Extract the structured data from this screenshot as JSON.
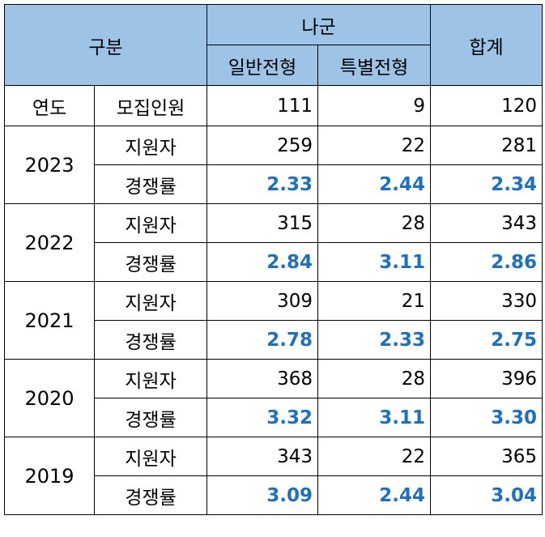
{
  "header": {
    "category": "구분",
    "group": "나군",
    "general": "일반전형",
    "special": "특별전형",
    "total": "합계"
  },
  "recruit_row": {
    "label_year": "연도",
    "label_quota": "모집인원",
    "general": "111",
    "special": "9",
    "total": "120"
  },
  "labels": {
    "applicants": "지원자",
    "ratio": "경쟁률"
  },
  "years": [
    {
      "year": "2023",
      "applicants": {
        "general": "259",
        "special": "22",
        "total": "281"
      },
      "ratio": {
        "general": "2.33",
        "special": "2.44",
        "total": "2.34"
      }
    },
    {
      "year": "2022",
      "applicants": {
        "general": "315",
        "special": "28",
        "total": "343"
      },
      "ratio": {
        "general": "2.84",
        "special": "3.11",
        "total": "2.86"
      }
    },
    {
      "year": "2021",
      "applicants": {
        "general": "309",
        "special": "21",
        "total": "330"
      },
      "ratio": {
        "general": "2.78",
        "special": "2.33",
        "total": "2.75"
      }
    },
    {
      "year": "2020",
      "applicants": {
        "general": "368",
        "special": "28",
        "total": "396"
      },
      "ratio": {
        "general": "3.32",
        "special": "3.11",
        "total": "3.30"
      }
    },
    {
      "year": "2019",
      "applicants": {
        "general": "343",
        "special": "22",
        "total": "365"
      },
      "ratio": {
        "general": "3.09",
        "special": "2.44",
        "total": "3.04"
      }
    }
  ],
  "colors": {
    "header_bg": "#9dc3e6",
    "ratio_text": "#1f6fbf",
    "border": "#000000"
  }
}
